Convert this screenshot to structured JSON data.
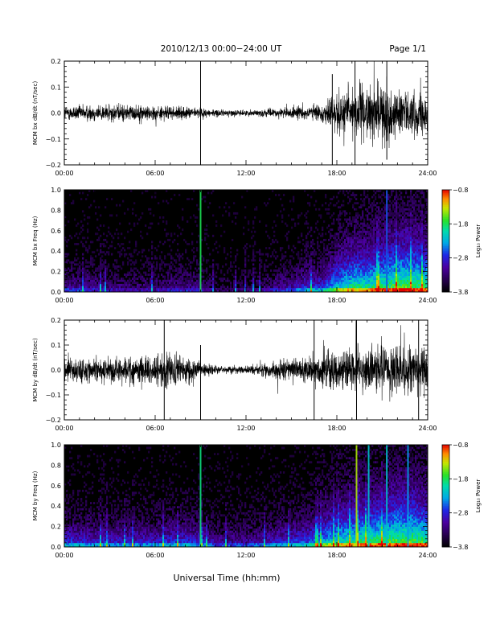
{
  "header": {
    "title": "2010/12/13  00:00−24:00 UT",
    "page": "Page 1/1"
  },
  "xlabel": "Universal Time (hh:mm)",
  "x_ticks": [
    "00:00",
    "06:00",
    "12:00",
    "18:00",
    "24:00"
  ],
  "colorbar": {
    "label": "Log₁₀ Power",
    "ticks": [
      "−0.8",
      "−1.8",
      "−2.8",
      "−3.8"
    ]
  },
  "chart_data": [
    {
      "type": "line",
      "ylabel": "MCM bx dB/dt (nT/sec)",
      "x_unit": "hours UT",
      "xlim": [
        0,
        24
      ],
      "ylim": [
        -0.2,
        0.2
      ],
      "y_ticks": [
        "0.2",
        "0.1",
        "0.0",
        "−0.1",
        "−0.2"
      ],
      "envelope": {
        "x": [
          0,
          2,
          4,
          6,
          8,
          9,
          10,
          12,
          14,
          16,
          17,
          18,
          19,
          20,
          21,
          22,
          23,
          24
        ],
        "amplitude": [
          0.05,
          0.06,
          0.06,
          0.05,
          0.04,
          0.035,
          0.025,
          0.02,
          0.03,
          0.05,
          0.06,
          0.14,
          0.2,
          0.18,
          0.2,
          0.16,
          0.15,
          0.14
        ]
      },
      "spikes": [
        {
          "x": 9.0,
          "y_min": -0.2,
          "y_max": 0.2
        },
        {
          "x": 17.7,
          "y_min": -0.2,
          "y_max": 0.15
        },
        {
          "x": 19.2,
          "y_min": -0.2,
          "y_max": 0.2
        },
        {
          "x": 21.3,
          "y_min": -0.18,
          "y_max": 0.2
        }
      ]
    },
    {
      "type": "heatmap",
      "ylabel": "MCM bx Freq (Hz)",
      "x_unit": "hours UT",
      "xlim": [
        0,
        24
      ],
      "ylim": [
        0,
        1.0
      ],
      "y_ticks": [
        "1.0",
        "0.8",
        "0.6",
        "0.4",
        "0.2",
        "0.0"
      ],
      "zlim": [
        -3.8,
        -0.8
      ],
      "activity": {
        "x": [
          0,
          2,
          4,
          6,
          7,
          8,
          9,
          10,
          12,
          14,
          15,
          16,
          17,
          18,
          19,
          20,
          21,
          22,
          23,
          24
        ],
        "level": [
          0.35,
          0.3,
          0.25,
          0.25,
          0.3,
          0.3,
          0.3,
          0.15,
          0.15,
          0.3,
          0.35,
          0.5,
          0.5,
          0.75,
          0.85,
          0.85,
          0.9,
          0.95,
          0.95,
          0.9
        ]
      },
      "vertical_streaks": [
        {
          "x": 9.0,
          "log_power": -1.8
        },
        {
          "x": 21.3,
          "log_power": -2.6
        }
      ]
    },
    {
      "type": "line",
      "ylabel": "MCM by dB/dt (nT/sec)",
      "x_unit": "hours UT",
      "xlim": [
        0,
        24
      ],
      "ylim": [
        -0.2,
        0.2
      ],
      "y_ticks": [
        "0.2",
        "0.1",
        "0.0",
        "−0.1",
        "−0.2"
      ],
      "envelope": {
        "x": [
          0,
          2,
          4,
          6,
          7,
          8,
          9,
          10,
          12,
          14,
          15,
          16,
          17,
          18,
          19,
          20,
          21,
          22,
          23,
          24
        ],
        "amplitude": [
          0.09,
          0.1,
          0.1,
          0.11,
          0.14,
          0.1,
          0.06,
          0.03,
          0.03,
          0.06,
          0.08,
          0.1,
          0.12,
          0.14,
          0.15,
          0.18,
          0.18,
          0.17,
          0.17,
          0.17
        ]
      },
      "spikes": [
        {
          "x": 6.6,
          "y_min": -0.2,
          "y_max": 0.2
        },
        {
          "x": 9.0,
          "y_min": -0.2,
          "y_max": 0.1
        },
        {
          "x": 16.5,
          "y_min": -0.2,
          "y_max": 0.2
        },
        {
          "x": 19.3,
          "y_min": -0.2,
          "y_max": 0.2
        },
        {
          "x": 23.4,
          "y_min": -0.2,
          "y_max": 0.2
        }
      ]
    },
    {
      "type": "heatmap",
      "ylabel": "MCM by Freq (Hz)",
      "x_unit": "hours UT",
      "xlim": [
        0,
        24
      ],
      "ylim": [
        0,
        1.0
      ],
      "y_ticks": [
        "1.0",
        "0.8",
        "0.6",
        "0.4",
        "0.2",
        "0.0"
      ],
      "zlim": [
        -3.8,
        -0.8
      ],
      "activity": {
        "x": [
          0,
          2,
          4,
          6,
          7,
          8,
          9,
          10,
          12,
          14,
          15,
          16,
          17,
          18,
          19,
          20,
          21,
          22,
          23,
          24
        ],
        "level": [
          0.5,
          0.45,
          0.45,
          0.45,
          0.5,
          0.5,
          0.45,
          0.35,
          0.35,
          0.45,
          0.5,
          0.55,
          0.7,
          0.8,
          0.85,
          0.9,
          0.9,
          0.95,
          0.95,
          0.9
        ]
      },
      "vertical_streaks": [
        {
          "x": 9.0,
          "log_power": -1.9
        },
        {
          "x": 19.3,
          "log_power": -1.4
        },
        {
          "x": 20.1,
          "log_power": -2.2
        },
        {
          "x": 21.3,
          "log_power": -2.2
        },
        {
          "x": 22.7,
          "log_power": -2.4
        }
      ]
    }
  ]
}
